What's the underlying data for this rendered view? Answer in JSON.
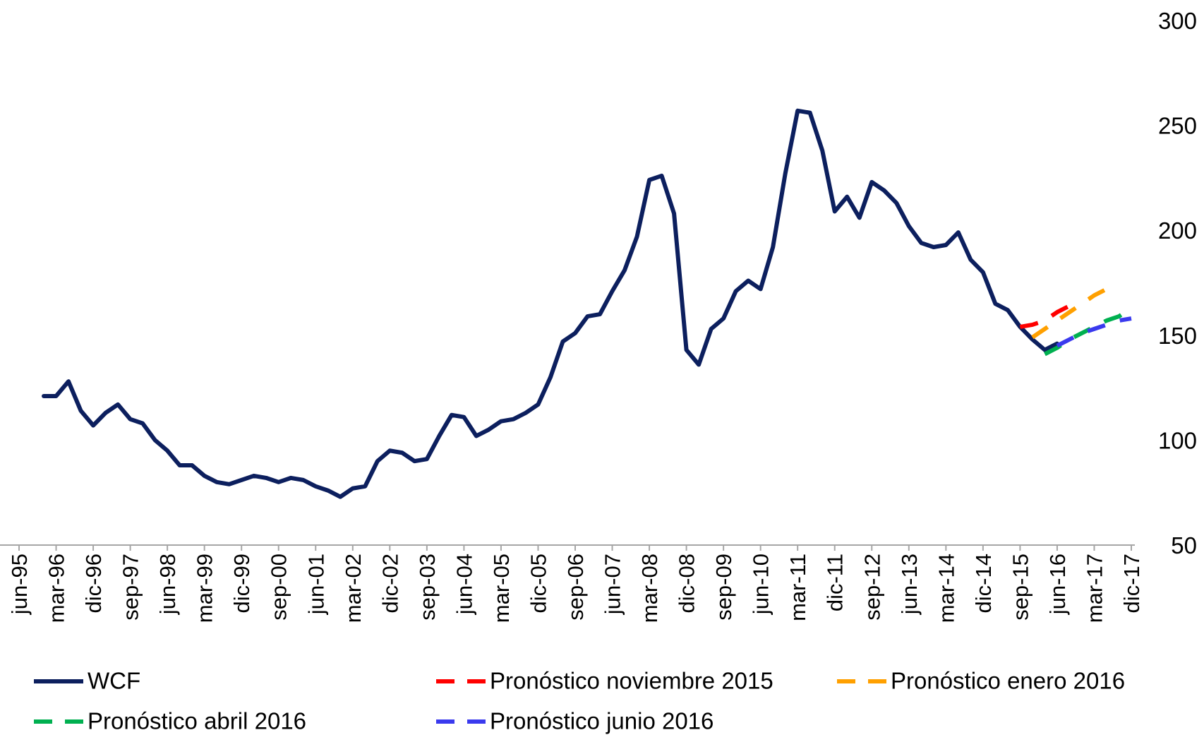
{
  "chart_data": {
    "type": "line",
    "categories": [
      "jun-95",
      null,
      null,
      "mar-96",
      null,
      null,
      "dic-96",
      null,
      null,
      "sep-97",
      null,
      null,
      "jun-98",
      null,
      null,
      "mar-99",
      null,
      null,
      "dic-99",
      null,
      null,
      "sep-00",
      null,
      null,
      "jun-01",
      null,
      null,
      "mar-02",
      null,
      null,
      "dic-02",
      null,
      null,
      "sep-03",
      null,
      null,
      "jun-04",
      null,
      null,
      "mar-05",
      null,
      null,
      "dic-05",
      null,
      null,
      "sep-06",
      null,
      null,
      "jun-07",
      null,
      null,
      "mar-08",
      null,
      null,
      "dic-08",
      null,
      null,
      "sep-09",
      null,
      null,
      "jun-10",
      null,
      null,
      "mar-11",
      null,
      null,
      "dic-11",
      null,
      null,
      "sep-12",
      null,
      null,
      "jun-13",
      null,
      null,
      "mar-14",
      null,
      null,
      "dic-14",
      null,
      null,
      "sep-15",
      null,
      null,
      "jun-16",
      null,
      null,
      "mar-17",
      null,
      null,
      "dic-17"
    ],
    "series": [
      {
        "name": "WCF",
        "color": "#0c1f5e",
        "line_style": "solid",
        "values": [
          null,
          null,
          121,
          121,
          128,
          114,
          107,
          113,
          117,
          110,
          108,
          100,
          95,
          88,
          88,
          83,
          80,
          79,
          81,
          83,
          82,
          80,
          82,
          81,
          78,
          76,
          73,
          77,
          78,
          90,
          95,
          94,
          90,
          91,
          102,
          112,
          111,
          102,
          105,
          109,
          110,
          113,
          117,
          130,
          147,
          151,
          159,
          160,
          171,
          181,
          197,
          224,
          226,
          208,
          143,
          136,
          153,
          158,
          171,
          176,
          172,
          192,
          227,
          257,
          256,
          238,
          209,
          216,
          206,
          223,
          219,
          213,
          202,
          194,
          192,
          193,
          199,
          186,
          180,
          165,
          162,
          154,
          148,
          143,
          146,
          null,
          null,
          null,
          null,
          null,
          null
        ]
      },
      {
        "name": "Pronóstico noviembre 2015",
        "color": "#ff0000",
        "line_style": "dashed",
        "values": [
          null,
          null,
          null,
          null,
          null,
          null,
          null,
          null,
          null,
          null,
          null,
          null,
          null,
          null,
          null,
          null,
          null,
          null,
          null,
          null,
          null,
          null,
          null,
          null,
          null,
          null,
          null,
          null,
          null,
          null,
          null,
          null,
          null,
          null,
          null,
          null,
          null,
          null,
          null,
          null,
          null,
          null,
          null,
          null,
          null,
          null,
          null,
          null,
          null,
          null,
          null,
          null,
          null,
          null,
          null,
          null,
          null,
          null,
          null,
          null,
          null,
          null,
          null,
          null,
          null,
          null,
          null,
          null,
          null,
          null,
          null,
          null,
          null,
          null,
          null,
          null,
          null,
          null,
          null,
          null,
          null,
          154,
          155,
          157,
          161,
          164,
          null,
          null,
          null,
          null,
          null
        ]
      },
      {
        "name": "Pronóstico enero 2016",
        "color": "#ffa000",
        "line_style": "dashed",
        "values": [
          null,
          null,
          null,
          null,
          null,
          null,
          null,
          null,
          null,
          null,
          null,
          null,
          null,
          null,
          null,
          null,
          null,
          null,
          null,
          null,
          null,
          null,
          null,
          null,
          null,
          null,
          null,
          null,
          null,
          null,
          null,
          null,
          null,
          null,
          null,
          null,
          null,
          null,
          null,
          null,
          null,
          null,
          null,
          null,
          null,
          null,
          null,
          null,
          null,
          null,
          null,
          null,
          null,
          null,
          null,
          null,
          null,
          null,
          null,
          null,
          null,
          null,
          null,
          null,
          null,
          null,
          null,
          null,
          null,
          null,
          null,
          null,
          null,
          null,
          null,
          null,
          null,
          null,
          null,
          null,
          null,
          null,
          149,
          153,
          157,
          161,
          165,
          169,
          172,
          null,
          null
        ]
      },
      {
        "name": "Pronóstico abril 2016",
        "color": "#00b050",
        "line_style": "dashed",
        "values": [
          null,
          null,
          null,
          null,
          null,
          null,
          null,
          null,
          null,
          null,
          null,
          null,
          null,
          null,
          null,
          null,
          null,
          null,
          null,
          null,
          null,
          null,
          null,
          null,
          null,
          null,
          null,
          null,
          null,
          null,
          null,
          null,
          null,
          null,
          null,
          null,
          null,
          null,
          null,
          null,
          null,
          null,
          null,
          null,
          null,
          null,
          null,
          null,
          null,
          null,
          null,
          null,
          null,
          null,
          null,
          null,
          null,
          null,
          null,
          null,
          null,
          null,
          null,
          null,
          null,
          null,
          null,
          null,
          null,
          null,
          null,
          null,
          null,
          null,
          null,
          null,
          null,
          null,
          null,
          null,
          null,
          null,
          null,
          141,
          144,
          148,
          151,
          154,
          157,
          159,
          163
        ]
      },
      {
        "name": "Pronóstico junio 2016",
        "color": "#3a3aee",
        "line_style": "dashed",
        "values": [
          null,
          null,
          null,
          null,
          null,
          null,
          null,
          null,
          null,
          null,
          null,
          null,
          null,
          null,
          null,
          null,
          null,
          null,
          null,
          null,
          null,
          null,
          null,
          null,
          null,
          null,
          null,
          null,
          null,
          null,
          null,
          null,
          null,
          null,
          null,
          null,
          null,
          null,
          null,
          null,
          null,
          null,
          null,
          null,
          null,
          null,
          null,
          null,
          null,
          null,
          null,
          null,
          null,
          null,
          null,
          null,
          null,
          null,
          null,
          null,
          null,
          null,
          null,
          null,
          null,
          null,
          null,
          null,
          null,
          null,
          null,
          null,
          null,
          null,
          null,
          null,
          null,
          null,
          null,
          null,
          null,
          null,
          null,
          null,
          145,
          148,
          151,
          153,
          155,
          157,
          158
        ]
      }
    ],
    "ylim": [
      50,
      300
    ],
    "yticks": [
      50,
      100,
      150,
      200,
      250,
      300
    ],
    "y_axis_side": "right",
    "grid": false,
    "legend": "bottom"
  }
}
